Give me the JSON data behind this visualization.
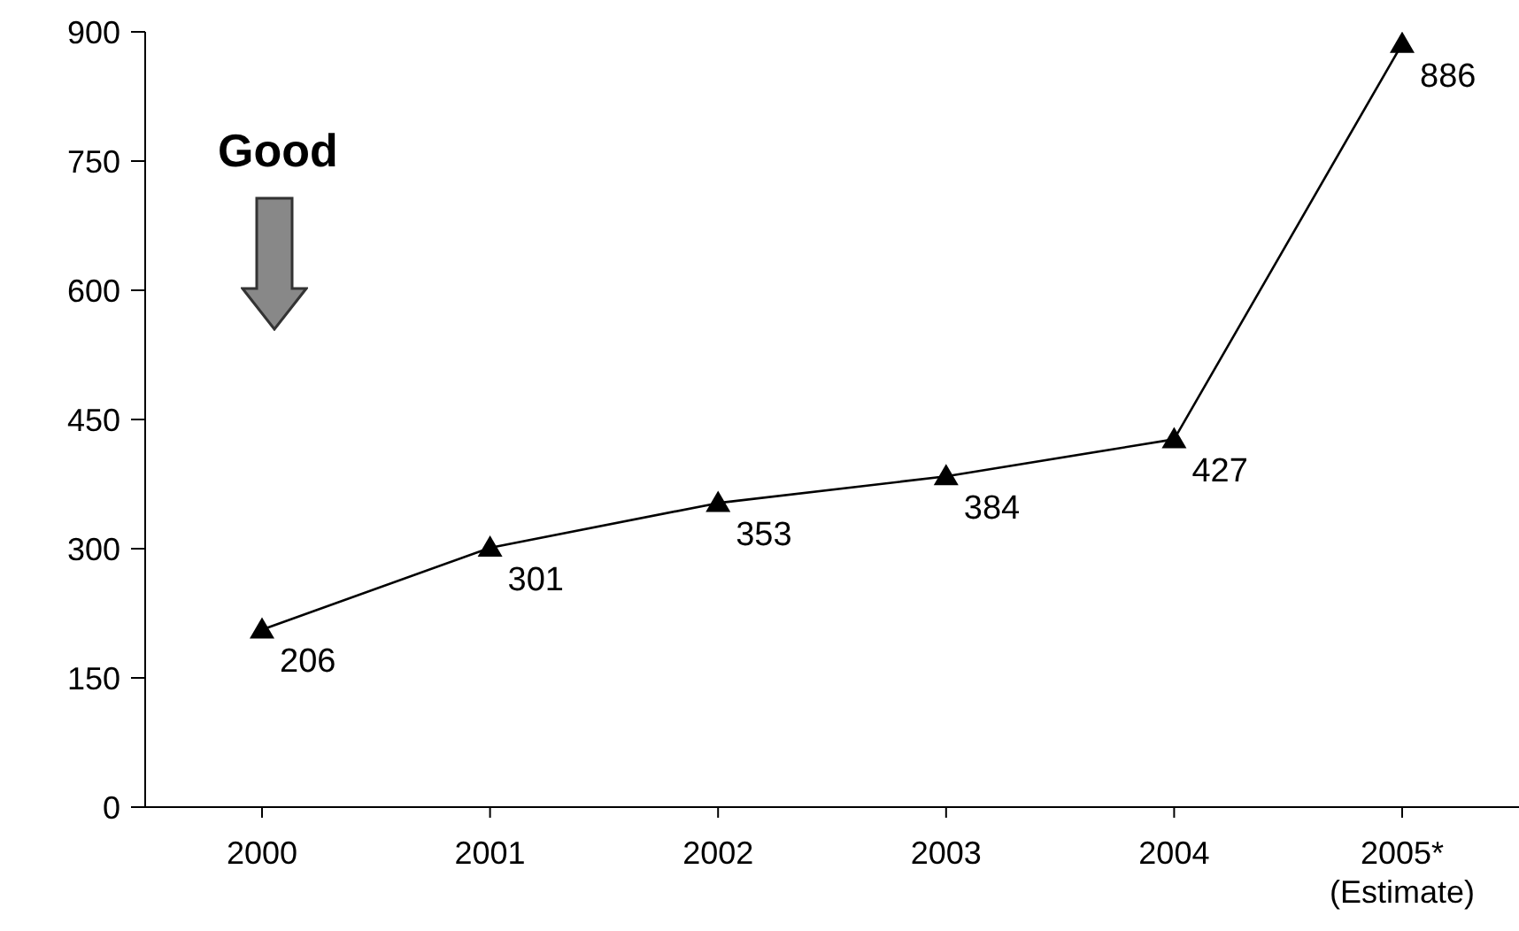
{
  "chart_data": {
    "type": "line",
    "categories": [
      "2000",
      "2001",
      "2002",
      "2003",
      "2004",
      "2005*\n(Estimate)"
    ],
    "values": [
      206,
      301,
      353,
      384,
      427,
      886
    ],
    "color": "#000000",
    "marker": "triangle",
    "data_labels": true,
    "grid": false,
    "ylim": [
      0,
      900
    ],
    "yticks": [
      0,
      150,
      300,
      450,
      600,
      750,
      900
    ],
    "annotations": [
      "Good"
    ]
  }
}
